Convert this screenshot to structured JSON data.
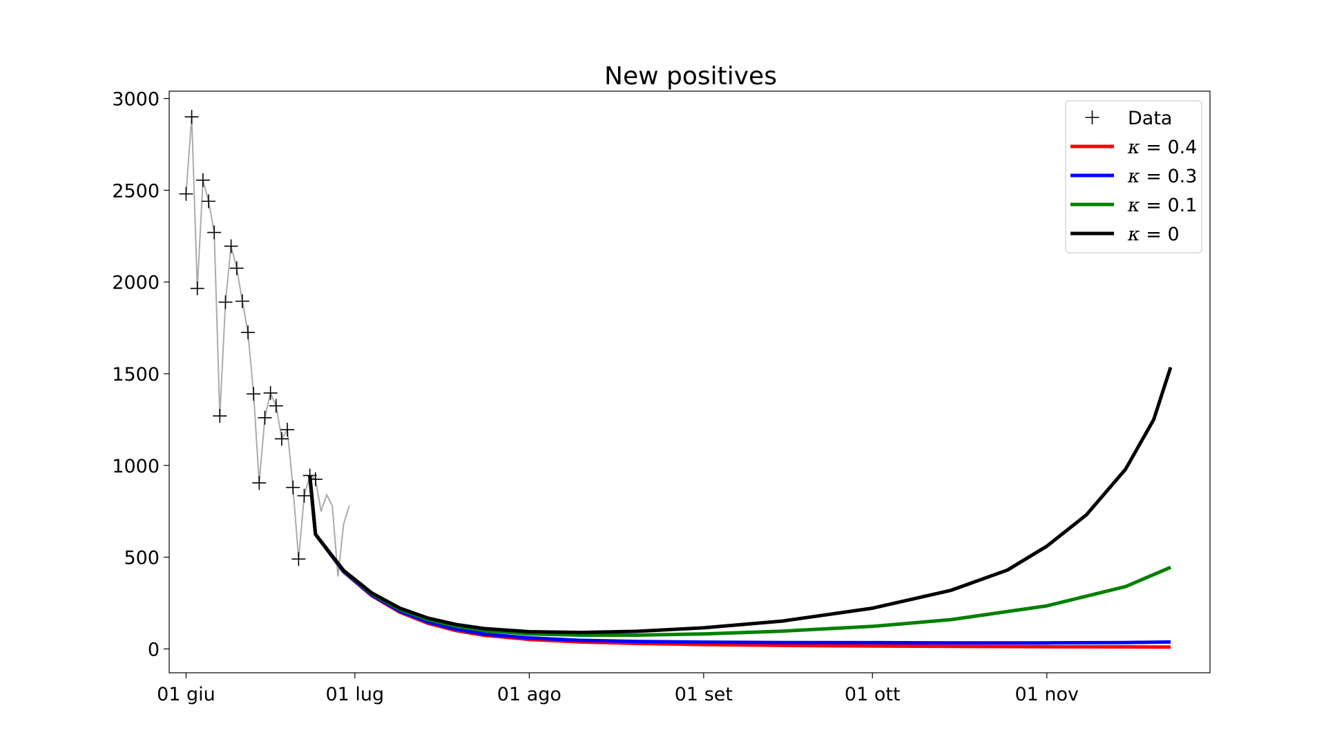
{
  "chart_data": {
    "type": "line",
    "title": "New positives",
    "xlabel": "",
    "ylabel": "",
    "x_axis": {
      "type": "date",
      "range": [
        "2020-05-29",
        "2020-11-30"
      ],
      "ticks": [
        {
          "date": "2020-06-01",
          "label": "01 giu"
        },
        {
          "date": "2020-07-01",
          "label": "01 lug"
        },
        {
          "date": "2020-08-01",
          "label": "01 ago"
        },
        {
          "date": "2020-09-01",
          "label": "01 set"
        },
        {
          "date": "2020-10-01",
          "label": "01 ott"
        },
        {
          "date": "2020-11-01",
          "label": "01 nov"
        }
      ]
    },
    "y_axis": {
      "range": [
        -130,
        3040
      ],
      "ticks": [
        0,
        500,
        1000,
        1500,
        2000,
        2500,
        3000
      ]
    },
    "grid": false,
    "legend_position": "top-right",
    "data_series": {
      "name": "Data",
      "color": "#000000",
      "marker": "plus",
      "points": [
        {
          "x": "2020-06-01",
          "y": 2480
        },
        {
          "x": "2020-06-02",
          "y": 2900
        },
        {
          "x": "2020-06-03",
          "y": 1965
        },
        {
          "x": "2020-06-04",
          "y": 2555
        },
        {
          "x": "2020-06-05",
          "y": 2440
        },
        {
          "x": "2020-06-06",
          "y": 2270
        },
        {
          "x": "2020-06-07",
          "y": 1270
        },
        {
          "x": "2020-06-08",
          "y": 1890
        },
        {
          "x": "2020-06-09",
          "y": 2195
        },
        {
          "x": "2020-06-10",
          "y": 2075
        },
        {
          "x": "2020-06-11",
          "y": 1895
        },
        {
          "x": "2020-06-12",
          "y": 1725
        },
        {
          "x": "2020-06-13",
          "y": 1390
        },
        {
          "x": "2020-06-14",
          "y": 905
        },
        {
          "x": "2020-06-15",
          "y": 1260
        },
        {
          "x": "2020-06-16",
          "y": 1395
        },
        {
          "x": "2020-06-17",
          "y": 1325
        },
        {
          "x": "2020-06-18",
          "y": 1145
        },
        {
          "x": "2020-06-19",
          "y": 1195
        },
        {
          "x": "2020-06-20",
          "y": 880
        },
        {
          "x": "2020-06-21",
          "y": 490
        },
        {
          "x": "2020-06-22",
          "y": 835
        },
        {
          "x": "2020-06-23",
          "y": 945
        },
        {
          "x": "2020-06-24",
          "y": 925
        }
      ]
    },
    "raw_line": {
      "color": "#aaaaaa",
      "points": [
        {
          "x": "2020-06-01",
          "y": 2480
        },
        {
          "x": "2020-06-02",
          "y": 2900
        },
        {
          "x": "2020-06-03",
          "y": 1965
        },
        {
          "x": "2020-06-04",
          "y": 2555
        },
        {
          "x": "2020-06-05",
          "y": 2440
        },
        {
          "x": "2020-06-06",
          "y": 2270
        },
        {
          "x": "2020-06-07",
          "y": 1270
        },
        {
          "x": "2020-06-08",
          "y": 1890
        },
        {
          "x": "2020-06-09",
          "y": 2195
        },
        {
          "x": "2020-06-10",
          "y": 2075
        },
        {
          "x": "2020-06-11",
          "y": 1895
        },
        {
          "x": "2020-06-12",
          "y": 1725
        },
        {
          "x": "2020-06-13",
          "y": 1390
        },
        {
          "x": "2020-06-14",
          "y": 905
        },
        {
          "x": "2020-06-15",
          "y": 1260
        },
        {
          "x": "2020-06-16",
          "y": 1395
        },
        {
          "x": "2020-06-17",
          "y": 1325
        },
        {
          "x": "2020-06-18",
          "y": 1145
        },
        {
          "x": "2020-06-19",
          "y": 1195
        },
        {
          "x": "2020-06-20",
          "y": 880
        },
        {
          "x": "2020-06-21",
          "y": 490
        },
        {
          "x": "2020-06-22",
          "y": 835
        },
        {
          "x": "2020-06-23",
          "y": 945
        },
        {
          "x": "2020-06-24",
          "y": 925
        },
        {
          "x": "2020-06-25",
          "y": 750
        },
        {
          "x": "2020-06-26",
          "y": 840
        },
        {
          "x": "2020-06-27",
          "y": 780
        },
        {
          "x": "2020-06-28",
          "y": 395
        },
        {
          "x": "2020-06-29",
          "y": 680
        },
        {
          "x": "2020-06-30",
          "y": 780
        }
      ]
    },
    "series": [
      {
        "name": "κ = 0.4",
        "legend_symbol": "κ",
        "legend_value": "= 0.4",
        "color": "#ff0000",
        "points": [
          {
            "x": "2020-06-23",
            "y": 945
          },
          {
            "x": "2020-06-24",
            "y": 625
          },
          {
            "x": "2020-06-29",
            "y": 420
          },
          {
            "x": "2020-07-04",
            "y": 290
          },
          {
            "x": "2020-07-09",
            "y": 200
          },
          {
            "x": "2020-07-14",
            "y": 140
          },
          {
            "x": "2020-07-19",
            "y": 100
          },
          {
            "x": "2020-07-24",
            "y": 74
          },
          {
            "x": "2020-08-01",
            "y": 52
          },
          {
            "x": "2020-08-10",
            "y": 38
          },
          {
            "x": "2020-08-20",
            "y": 30
          },
          {
            "x": "2020-09-01",
            "y": 24
          },
          {
            "x": "2020-09-15",
            "y": 19
          },
          {
            "x": "2020-10-01",
            "y": 16
          },
          {
            "x": "2020-10-15",
            "y": 14
          },
          {
            "x": "2020-11-01",
            "y": 12
          },
          {
            "x": "2020-11-15",
            "y": 11
          },
          {
            "x": "2020-11-23",
            "y": 10
          }
        ]
      },
      {
        "name": "κ = 0.3",
        "legend_symbol": "κ",
        "legend_value": "= 0.3",
        "color": "#0000ff",
        "points": [
          {
            "x": "2020-06-23",
            "y": 945
          },
          {
            "x": "2020-06-24",
            "y": 625
          },
          {
            "x": "2020-06-29",
            "y": 422
          },
          {
            "x": "2020-07-04",
            "y": 293
          },
          {
            "x": "2020-07-09",
            "y": 205
          },
          {
            "x": "2020-07-14",
            "y": 146
          },
          {
            "x": "2020-07-19",
            "y": 107
          },
          {
            "x": "2020-07-24",
            "y": 81
          },
          {
            "x": "2020-08-01",
            "y": 60
          },
          {
            "x": "2020-08-10",
            "y": 47
          },
          {
            "x": "2020-08-20",
            "y": 41
          },
          {
            "x": "2020-09-01",
            "y": 37
          },
          {
            "x": "2020-09-15",
            "y": 35
          },
          {
            "x": "2020-10-01",
            "y": 34
          },
          {
            "x": "2020-10-15",
            "y": 33
          },
          {
            "x": "2020-11-01",
            "y": 33
          },
          {
            "x": "2020-11-15",
            "y": 35
          },
          {
            "x": "2020-11-23",
            "y": 38
          }
        ]
      },
      {
        "name": "κ = 0.1",
        "legend_symbol": "κ",
        "legend_value": "= 0.1",
        "color": "#008000",
        "points": [
          {
            "x": "2020-06-23",
            "y": 945
          },
          {
            "x": "2020-06-24",
            "y": 625
          },
          {
            "x": "2020-06-29",
            "y": 426
          },
          {
            "x": "2020-07-04",
            "y": 300
          },
          {
            "x": "2020-07-09",
            "y": 215
          },
          {
            "x": "2020-07-14",
            "y": 160
          },
          {
            "x": "2020-07-19",
            "y": 123
          },
          {
            "x": "2020-07-24",
            "y": 100
          },
          {
            "x": "2020-08-01",
            "y": 82
          },
          {
            "x": "2020-08-10",
            "y": 75
          },
          {
            "x": "2020-08-20",
            "y": 75
          },
          {
            "x": "2020-09-01",
            "y": 82
          },
          {
            "x": "2020-09-15",
            "y": 97
          },
          {
            "x": "2020-10-01",
            "y": 123
          },
          {
            "x": "2020-10-15",
            "y": 160
          },
          {
            "x": "2020-11-01",
            "y": 235
          },
          {
            "x": "2020-11-15",
            "y": 340
          },
          {
            "x": "2020-11-23",
            "y": 445
          }
        ]
      },
      {
        "name": "κ = 0",
        "legend_symbol": "κ",
        "legend_value": "= 0",
        "color": "#000000",
        "points": [
          {
            "x": "2020-06-23",
            "y": 945
          },
          {
            "x": "2020-06-24",
            "y": 625
          },
          {
            "x": "2020-06-29",
            "y": 428
          },
          {
            "x": "2020-07-04",
            "y": 305
          },
          {
            "x": "2020-07-09",
            "y": 222
          },
          {
            "x": "2020-07-14",
            "y": 168
          },
          {
            "x": "2020-07-19",
            "y": 133
          },
          {
            "x": "2020-07-24",
            "y": 111
          },
          {
            "x": "2020-08-01",
            "y": 94
          },
          {
            "x": "2020-08-10",
            "y": 90
          },
          {
            "x": "2020-08-20",
            "y": 96
          },
          {
            "x": "2020-09-01",
            "y": 115
          },
          {
            "x": "2020-09-15",
            "y": 152
          },
          {
            "x": "2020-10-01",
            "y": 222
          },
          {
            "x": "2020-10-15",
            "y": 320
          },
          {
            "x": "2020-10-25",
            "y": 430
          },
          {
            "x": "2020-11-01",
            "y": 560
          },
          {
            "x": "2020-11-08",
            "y": 730
          },
          {
            "x": "2020-11-15",
            "y": 980
          },
          {
            "x": "2020-11-20",
            "y": 1250
          },
          {
            "x": "2020-11-23",
            "y": 1535
          }
        ]
      }
    ]
  }
}
